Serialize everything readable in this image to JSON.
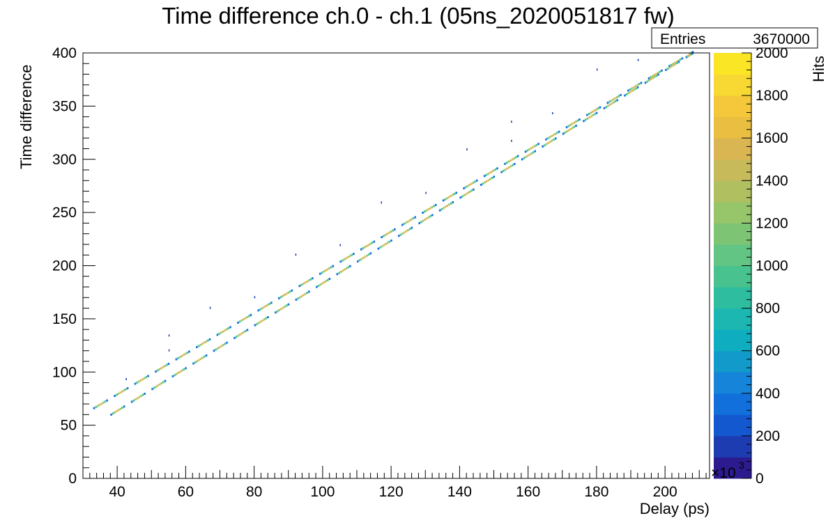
{
  "chart_data": {
    "type": "heatmap",
    "title": "Time difference ch.0 - ch.1 (05ns_2020051817 fw)",
    "xlabel": "Delay (ps)",
    "ylabel": "Time difference",
    "zlabel": "Hits",
    "xlim": [
      30,
      213
    ],
    "ylim": [
      0,
      400
    ],
    "zlim": [
      0,
      2000
    ],
    "x_ticks": [
      "40",
      "60",
      "80",
      "100",
      "120",
      "140",
      "160",
      "180",
      "200"
    ],
    "y_ticks": [
      "0",
      "50",
      "100",
      "150",
      "200",
      "250",
      "300",
      "350",
      "400"
    ],
    "z_ticks": [
      "0",
      "200",
      "400",
      "600",
      "800",
      "1000",
      "1200",
      "1400",
      "1600",
      "1800",
      "2000"
    ],
    "z_multiplier": "×10",
    "z_multiplier_exp": "3",
    "stats": {
      "label": "Entries",
      "value": "3670000"
    },
    "grid": false,
    "colormap": "viridis-like",
    "bands": [
      {
        "name": "upper",
        "x_start": 33,
        "y_start": 66,
        "x_end": 208,
        "y_end": 401
      },
      {
        "name": "lower",
        "x_start": 35,
        "y_start": 54,
        "x_end": 208,
        "y_end": 400
      }
    ],
    "segment_period_x": 6,
    "outliers": [
      {
        "x": 42.5,
        "y": 93
      },
      {
        "x": 55,
        "y": 134
      },
      {
        "x": 55,
        "y": 120
      },
      {
        "x": 67,
        "y": 160
      },
      {
        "x": 80,
        "y": 170
      },
      {
        "x": 92,
        "y": 210
      },
      {
        "x": 105,
        "y": 219
      },
      {
        "x": 117,
        "y": 259
      },
      {
        "x": 130,
        "y": 268
      },
      {
        "x": 142,
        "y": 309
      },
      {
        "x": 155,
        "y": 335
      },
      {
        "x": 155,
        "y": 317
      },
      {
        "x": 167,
        "y": 343
      },
      {
        "x": 180,
        "y": 384
      },
      {
        "x": 192,
        "y": 393
      }
    ]
  },
  "palette": [
    "#2b1b8e",
    "#1e3cb2",
    "#1458cf",
    "#1270dc",
    "#1584d9",
    "#129acb",
    "#0fadc0",
    "#1bb7b0",
    "#2fbd9f",
    "#48c28e",
    "#62c583",
    "#7dc574",
    "#97c56a",
    "#b0c061",
    "#c7ba5a",
    "#dab652",
    "#e9be41",
    "#f4c83a",
    "#f8d832",
    "#fbe625",
    "#faf718"
  ]
}
